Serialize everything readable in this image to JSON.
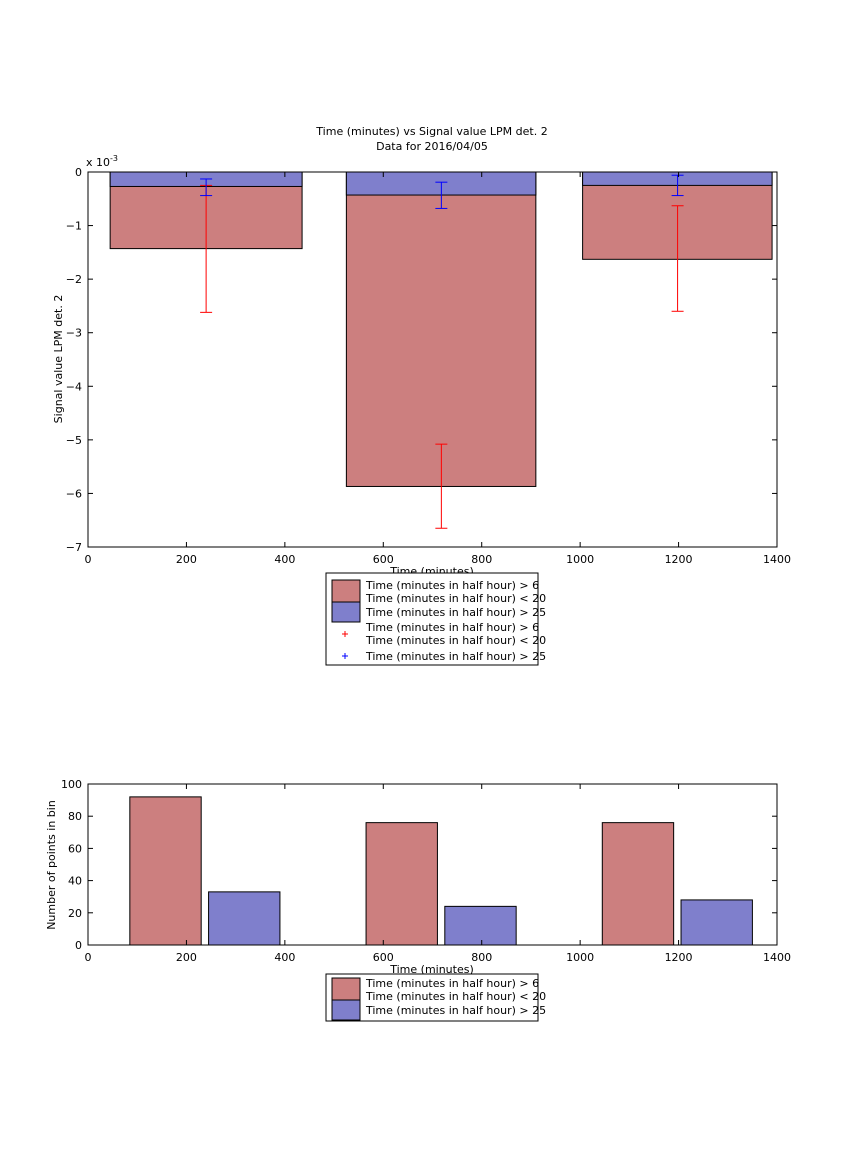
{
  "chart_data": [
    {
      "type": "bar",
      "title": "Time (minutes) vs Signal value LPM det. 2",
      "subtitle": "Data for 2016/04/05",
      "xlabel": "Time (minutes)",
      "ylabel": "Signal value LPM det. 2",
      "y_exponent_label": "x 10",
      "y_exponent_power": "-3",
      "xlim": [
        0,
        1400
      ],
      "ylim": [
        -7,
        0
      ],
      "y_scale_factor": 0.001,
      "xticks": [
        "0",
        "200",
        "400",
        "600",
        "800",
        "1000",
        "1200",
        "1400"
      ],
      "yticks": [
        "0",
        "−1",
        "−2",
        "−3",
        "−4",
        "−5",
        "−6",
        "−7"
      ],
      "grid": false,
      "legend_position": "below",
      "bins": [
        {
          "x_start": 45,
          "x_end": 435,
          "x_center": 240
        },
        {
          "x_start": 525,
          "x_end": 910,
          "x_center": 718
        },
        {
          "x_start": 1005,
          "x_end": 1390,
          "x_center": 1198
        }
      ],
      "series": [
        {
          "name": "Time (minutes in half hour) > 6 Time (minutes in half hour) < 20",
          "legend_lines": [
            "Time (minutes in half hour) > 6",
            "Time (minutes in half hour) < 20"
          ],
          "color": "#cc7f7f",
          "values": [
            -1.43,
            -5.87,
            -1.63
          ],
          "errors": [
            {
              "low": -2.62,
              "high": -0.25
            },
            {
              "low": -6.65,
              "high": -5.08
            },
            {
              "low": -2.6,
              "high": -0.63
            }
          ],
          "error_color": "#ff0000"
        },
        {
          "name": "Time (minutes in half hour) > 25",
          "legend_lines": [
            "Time (minutes in half hour) > 25"
          ],
          "color": "#7f7fcc",
          "values": [
            -0.27,
            -0.43,
            -0.25
          ],
          "errors": [
            {
              "low": -0.44,
              "high": -0.13
            },
            {
              "low": -0.68,
              "high": -0.19
            },
            {
              "low": -0.44,
              "high": -0.06
            }
          ],
          "error_color": "#0000ff"
        }
      ]
    },
    {
      "type": "bar",
      "xlabel": "Time (minutes)",
      "ylabel": "Number of points in bin",
      "xlim": [
        0,
        1400
      ],
      "ylim": [
        0,
        100
      ],
      "xticks": [
        "0",
        "200",
        "400",
        "600",
        "800",
        "1000",
        "1200",
        "1400"
      ],
      "yticks": [
        "0",
        "20",
        "40",
        "60",
        "80",
        "100"
      ],
      "grid": false,
      "legend_position": "below",
      "series": [
        {
          "name": "Time (minutes in half hour) > 6 Time (minutes in half hour) < 20",
          "legend_lines": [
            "Time (minutes in half hour) > 6",
            "Time (minutes in half hour) < 20"
          ],
          "color": "#cc7f7f",
          "bars": [
            {
              "x_start": 85,
              "x_end": 230,
              "value": 92
            },
            {
              "x_start": 565,
              "x_end": 710,
              "value": 76
            },
            {
              "x_start": 1045,
              "x_end": 1190,
              "value": 76
            }
          ]
        },
        {
          "name": "Time (minutes in half hour) > 25",
          "legend_lines": [
            "Time (minutes in half hour) > 25"
          ],
          "color": "#7f7fcc",
          "bars": [
            {
              "x_start": 245,
              "x_end": 390,
              "value": 33
            },
            {
              "x_start": 725,
              "x_end": 870,
              "value": 24
            },
            {
              "x_start": 1205,
              "x_end": 1350,
              "value": 28
            }
          ]
        }
      ]
    }
  ]
}
